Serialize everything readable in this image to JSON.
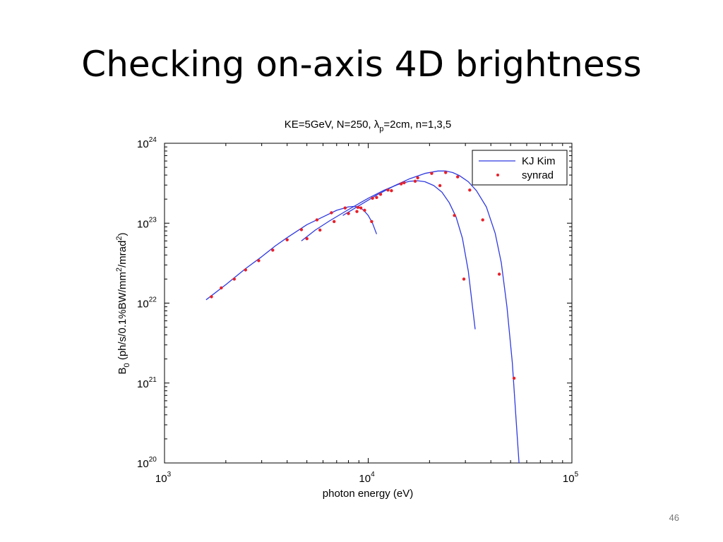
{
  "slide": {
    "title": "Checking on-axis 4D brightness",
    "page_number": "46"
  },
  "chart_data": {
    "type": "line",
    "title": {
      "base": "KE=5GeV, N=250, λ",
      "sub": "p",
      "rest": "=2cm, n=1,3,5"
    },
    "xlabel": "photon energy (eV)",
    "ylabel": {
      "p1": "B",
      "p1_sub": "0",
      "p2": " (ph/s/0.1%BW/mm",
      "p2_sup": "2",
      "p3": "/mrad",
      "p3_sup": "2",
      "p4": ")"
    },
    "xscale": "log",
    "yscale": "log",
    "xlim": [
      1000,
      100000
    ],
    "ylim": [
      1e+20,
      1e+24
    ],
    "xticks": [
      {
        "base": "10",
        "exp": "3",
        "value": 1000
      },
      {
        "base": "10",
        "exp": "4",
        "value": 10000
      },
      {
        "base": "10",
        "exp": "5",
        "value": 100000
      }
    ],
    "yticks": [
      {
        "base": "10",
        "exp": "20",
        "value": 1e+20
      },
      {
        "base": "10",
        "exp": "21",
        "value": 1e+21
      },
      {
        "base": "10",
        "exp": "22",
        "value": 1e+22
      },
      {
        "base": "10",
        "exp": "23",
        "value": 1e+23
      },
      {
        "base": "10",
        "exp": "24",
        "value": 1e+24
      }
    ],
    "grid": false,
    "legend": {
      "position": "top-right",
      "entries": [
        {
          "label": "KJ Kim",
          "style": "line",
          "color": "#2f3ae0"
        },
        {
          "label": "synrad",
          "style": "dot",
          "color": "#e8202a"
        }
      ]
    },
    "series": [
      {
        "name": "KJ Kim",
        "color": "#2f3ae0",
        "curves": [
          [
            [
              1600,
              1.1e+22
            ],
            [
              2000,
              1.7e+22
            ],
            [
              2500,
              2.7e+22
            ],
            [
              3000,
              3.8e+22
            ],
            [
              3500,
              5.2e+22
            ],
            [
              4000,
              6.6e+22
            ],
            [
              5000,
              9.6e+22
            ],
            [
              6000,
              1.2e+23
            ],
            [
              7000,
              1.45e+23
            ],
            [
              8000,
              1.6e+23
            ],
            [
              8500,
              1.62e+23
            ],
            [
              9000,
              1.6e+23
            ],
            [
              9500,
              1.45e+23
            ],
            [
              10000,
              1.25e+23
            ],
            [
              10500,
              1e+23
            ],
            [
              11000,
              7.3e+22
            ]
          ],
          [
            [
              4700,
              6e+22
            ],
            [
              5500,
              8.2e+22
            ],
            [
              6500,
              1.08e+23
            ],
            [
              8000,
              1.48e+23
            ],
            [
              10000,
              2.05e+23
            ],
            [
              12000,
              2.6e+23
            ],
            [
              14000,
              3.05e+23
            ],
            [
              16000,
              3.35e+23
            ],
            [
              17500,
              3.4e+23
            ],
            [
              19000,
              3.3e+23
            ],
            [
              21000,
              2.95e+23
            ],
            [
              23000,
              2.45e+23
            ],
            [
              25000,
              1.8e+23
            ],
            [
              27000,
              1.2e+23
            ],
            [
              29000,
              6.5e+22
            ],
            [
              31000,
              2.5e+22
            ],
            [
              32500,
              9e+21
            ],
            [
              33500,
              4.7e+21
            ]
          ],
          [
            [
              7500,
              1.25e+23
            ],
            [
              9000,
              1.65e+23
            ],
            [
              11000,
              2.25e+23
            ],
            [
              13500,
              2.95e+23
            ],
            [
              16000,
              3.6e+23
            ],
            [
              19000,
              4.2e+23
            ],
            [
              22000,
              4.5e+23
            ],
            [
              24000,
              4.5e+23
            ],
            [
              26000,
              4.3e+23
            ],
            [
              28000,
              3.95e+23
            ],
            [
              31000,
              3.3e+23
            ],
            [
              34000,
              2.55e+23
            ],
            [
              38000,
              1.6e+23
            ],
            [
              42000,
              7.5e+22
            ],
            [
              45000,
              3.2e+22
            ],
            [
              48000,
              9e+21
            ],
            [
              51000,
              1.8e+21
            ],
            [
              53000,
              4e+20
            ],
            [
              55000,
              1e+20
            ]
          ]
        ]
      },
      {
        "name": "synrad",
        "color": "#e8202a",
        "points": [
          [
            1700,
            1.2e+22
          ],
          [
            1900,
            1.55e+22
          ],
          [
            2200,
            2e+22
          ],
          [
            2500,
            2.6e+22
          ],
          [
            2900,
            3.4e+22
          ],
          [
            3400,
            4.6e+22
          ],
          [
            4000,
            6.2e+22
          ],
          [
            4700,
            8.3e+22
          ],
          [
            5600,
            1.1e+23
          ],
          [
            6600,
            1.35e+23
          ],
          [
            7700,
            1.55e+23
          ],
          [
            8900,
            1.58e+23
          ],
          [
            9600,
            1.45e+23
          ],
          [
            10400,
            1.05e+23
          ],
          [
            5000,
            6.4e+22
          ],
          [
            5800,
            8.2e+22
          ],
          [
            6800,
            1.05e+23
          ],
          [
            8000,
            1.32e+23
          ],
          [
            8800,
            1.4e+23
          ],
          [
            9200,
            1.55e+23
          ],
          [
            10500,
            2.05e+23
          ],
          [
            11500,
            2.3e+23
          ],
          [
            12500,
            2.6e+23
          ],
          [
            14500,
            3.1e+23
          ],
          [
            17000,
            3.35e+23
          ],
          [
            22500,
            2.95e+23
          ],
          [
            26500,
            1.25e+23
          ],
          [
            29500,
            2e+22
          ],
          [
            11000,
            2.1e+23
          ],
          [
            13000,
            2.55e+23
          ],
          [
            15000,
            3.2e+23
          ],
          [
            17500,
            3.7e+23
          ],
          [
            20500,
            4.2e+23
          ],
          [
            24000,
            4.3e+23
          ],
          [
            27500,
            3.8e+23
          ],
          [
            31500,
            2.6e+23
          ],
          [
            36500,
            1.1e+23
          ],
          [
            44000,
            2.3e+22
          ],
          [
            52000,
            1.15e+21
          ]
        ]
      }
    ]
  }
}
